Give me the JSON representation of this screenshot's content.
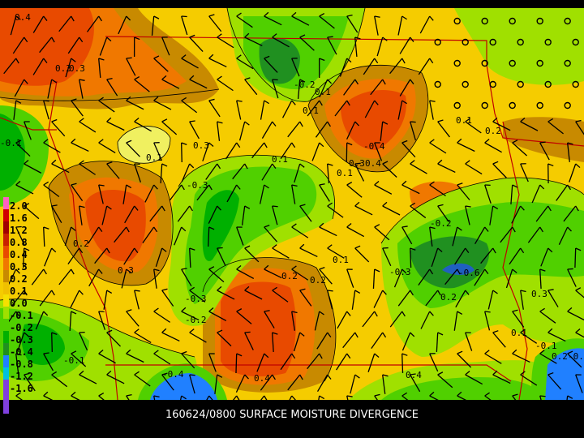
{
  "map": {
    "title": "160624/0800 SURFACE MOISTURE DIVERGENCE",
    "legend": [
      {
        "label": "2.0",
        "color": "#ff60c0"
      },
      {
        "label": "1.6",
        "color": "#d00000"
      },
      {
        "label": "1.2",
        "color": "#a00000"
      },
      {
        "label": "0.8",
        "color": "#c82000"
      },
      {
        "label": "0.4",
        "color": "#e84a00"
      },
      {
        "label": "0.3",
        "color": "#f07800"
      },
      {
        "label": "0.2",
        "color": "#c88a00"
      },
      {
        "label": "0.1",
        "color": "#f0c000"
      },
      {
        "label": "0.0",
        "color": "#f5e000"
      },
      {
        "label": "-0.1",
        "color": "#a0e000"
      },
      {
        "label": "-0.2",
        "color": "#50d000"
      },
      {
        "label": "-0.3",
        "color": "#00b000"
      },
      {
        "label": "-0.4",
        "color": "#209020"
      },
      {
        "label": "-0.8",
        "color": "#2080ff"
      },
      {
        "label": "-1.2",
        "color": "#00c0e0"
      },
      {
        "label": "-1.6",
        "color": "#8040e0"
      }
    ],
    "contour_labels": [
      "0.4",
      "0.3",
      "0.3",
      "-0.2",
      "0.1",
      "-0.1",
      "0.1",
      "-0.4",
      "0.2",
      "0.1",
      "0.3",
      "0.1",
      "0.1",
      "0.1",
      "0.3",
      "-0.3",
      "-0.2",
      "0.2",
      "0.3",
      "0.2",
      "-0.3",
      "-0.6",
      "0.2",
      "0.2",
      "0.1",
      "-0.3",
      "-0.2",
      "0.4",
      "-0.4",
      "0.4",
      "0.4",
      "-0.1",
      "0.3",
      "0.1",
      "0.2",
      "-0.4",
      "-0.1"
    ]
  }
}
